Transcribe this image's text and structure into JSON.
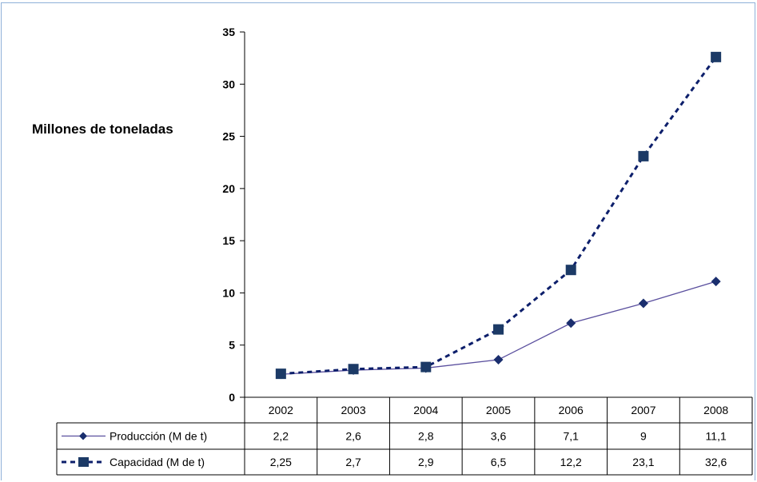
{
  "chart_data": {
    "type": "line",
    "ylabel": "Millones de toneladas",
    "ylim": [
      0,
      35
    ],
    "yticks": [
      0,
      5,
      10,
      15,
      20,
      25,
      30,
      35
    ],
    "categories": [
      "2002",
      "2003",
      "2004",
      "2005",
      "2006",
      "2007",
      "2008"
    ],
    "series": [
      {
        "name": "Producción (M de t)",
        "values": [
          2.2,
          2.6,
          2.8,
          3.6,
          7.1,
          9,
          11.1
        ],
        "labels": [
          "2,2",
          "2,6",
          "2,8",
          "3,6",
          "7,1",
          "9",
          "11,1"
        ],
        "marker": "diamond",
        "line_style": "solid",
        "color": "#5a4f9e",
        "marker_color": "#1a2e6e"
      },
      {
        "name": "Capacidad (M de t)",
        "values": [
          2.25,
          2.7,
          2.9,
          6.5,
          12.2,
          23.1,
          32.6
        ],
        "labels": [
          "2,25",
          "2,7",
          "2,9",
          "6,5",
          "12,2",
          "23,1",
          "32,6"
        ],
        "marker": "square",
        "line_style": "dashed",
        "color": "#0d1f6b",
        "marker_color": "#1c3a66"
      }
    ],
    "legend": "data-table",
    "grid": false
  }
}
